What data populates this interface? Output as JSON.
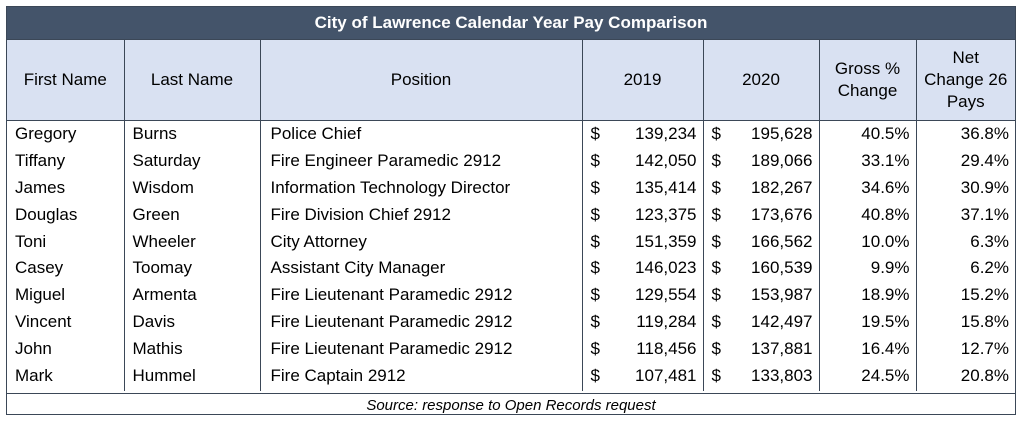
{
  "title": "City of Lawrence Calendar Year Pay Comparison",
  "headers": {
    "first": "First Name",
    "last": "Last Name",
    "position": "Position",
    "y2019": "2019",
    "y2020": "2020",
    "gross": "Gross % Change",
    "net": "Net Change 26 Pays"
  },
  "currency_symbol": "$",
  "rows": [
    {
      "first": "Gregory",
      "last": "Burns",
      "position": "Police Chief",
      "y2019": "139,234",
      "y2020": "195,628",
      "gross": "40.5%",
      "net": "36.8%"
    },
    {
      "first": "Tiffany",
      "last": "Saturday",
      "position": "Fire Engineer Paramedic 2912",
      "y2019": "142,050",
      "y2020": "189,066",
      "gross": "33.1%",
      "net": "29.4%"
    },
    {
      "first": "James",
      "last": "Wisdom",
      "position": "Information Technology Director",
      "y2019": "135,414",
      "y2020": "182,267",
      "gross": "34.6%",
      "net": "30.9%"
    },
    {
      "first": "Douglas",
      "last": "Green",
      "position": "Fire Division Chief 2912",
      "y2019": "123,375",
      "y2020": "173,676",
      "gross": "40.8%",
      "net": "37.1%"
    },
    {
      "first": "Toni",
      "last": "Wheeler",
      "position": "City Attorney",
      "y2019": "151,359",
      "y2020": "166,562",
      "gross": "10.0%",
      "net": "6.3%"
    },
    {
      "first": "Casey",
      "last": "Toomay",
      "position": "Assistant City Manager",
      "y2019": "146,023",
      "y2020": "160,539",
      "gross": "9.9%",
      "net": "6.2%"
    },
    {
      "first": "Miguel",
      "last": "Armenta",
      "position": "Fire Lieutenant Paramedic 2912",
      "y2019": "129,554",
      "y2020": "153,987",
      "gross": "18.9%",
      "net": "15.2%"
    },
    {
      "first": "Vincent",
      "last": "Davis",
      "position": "Fire Lieutenant Paramedic 2912",
      "y2019": "119,284",
      "y2020": "142,497",
      "gross": "19.5%",
      "net": "15.8%"
    },
    {
      "first": "John",
      "last": "Mathis",
      "position": "Fire Lieutenant Paramedic 2912",
      "y2019": "118,456",
      "y2020": "137,881",
      "gross": "16.4%",
      "net": "12.7%"
    },
    {
      "first": "Mark",
      "last": "Hummel",
      "position": "Fire Captain 2912",
      "y2019": "107,481",
      "y2020": "133,803",
      "gross": "24.5%",
      "net": "20.8%"
    }
  ],
  "source": "Source: response to Open Records request",
  "colors": {
    "title_bg": "#44546a",
    "header_bg": "#d9e1f2",
    "border": "#3b4757"
  }
}
